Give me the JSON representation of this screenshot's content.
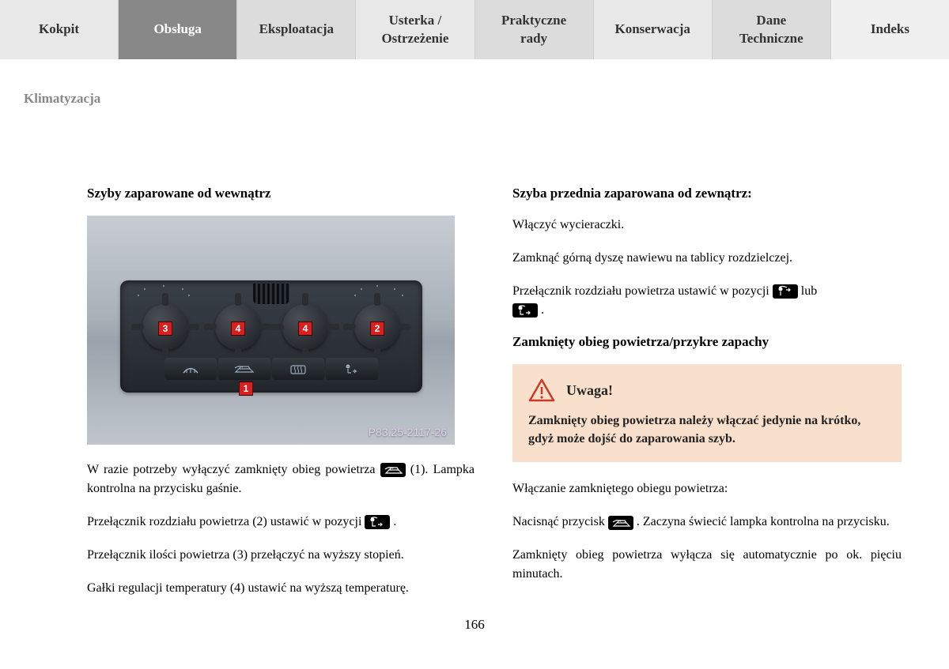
{
  "tabs": [
    {
      "label": "Kokpit",
      "cls": "light"
    },
    {
      "label": "Obsługa",
      "cls": "active"
    },
    {
      "label": "Eksploatacja",
      "cls": "lighter"
    },
    {
      "label": "Usterka / Ostrzeżenie",
      "cls": "light"
    },
    {
      "label": "Praktyczne rady",
      "cls": "lighter"
    },
    {
      "label": "Konserwacja",
      "cls": "light"
    },
    {
      "label": "Dane Techniczne",
      "cls": "lighter"
    },
    {
      "label": "Indeks",
      "cls": "last"
    }
  ],
  "section_label": "Klimatyzacja",
  "left": {
    "heading": "Szyby zaparowane od wewnątrz",
    "image_code": "P83.25-2117-26",
    "markers": {
      "m1": "1",
      "m2": "2",
      "m3": "3",
      "m4a": "4",
      "m4b": "4"
    },
    "p1a": "W razie potrzeby wyłączyć zamknięty obieg powietrza ",
    "p1b": " (1). Lampka kontrolna na przycisku gaśnie.",
    "p2a": "Przełącznik rozdziału powietrza (2) ustawić w pozycji ",
    "p2b": ".",
    "p3": "Przełącznik ilości powietrza (3) przełączyć na wyższy stopień.",
    "p4": "Gałki regulacji temperatury (4) ustawić na wyższą temperaturę."
  },
  "right": {
    "heading1": "Szyba przednia zaparowana od zewnątrz:",
    "p1": "Włączyć wycieraczki.",
    "p2": "Zamknąć górną dyszę nawiewu na tablicy rozdzielczej.",
    "p3a": "Przełącznik rozdziału powietrza ustawić w pozycji ",
    "p3b": " lub ",
    "p3c": ".",
    "heading2": "Zamknięty obieg powietrza/przykre zapachy",
    "warn_title": "Uwaga!",
    "warn_body": "Zamknięty obieg powietrza należy włączać jedynie na krótko, gdyż może dojść do zaparowania szyb.",
    "p4": "Włączanie zamkniętego obiegu powietrza:",
    "p5a": "Nacisnąć przycisk ",
    "p5b": ". Zaczyna świecić lampka kontrolna na przycisku.",
    "p6": "Zamknięty obieg powietrza wyłącza się automatycznie po ok. pięciu minutach."
  },
  "page_number": "166",
  "colors": {
    "tab_active_bg": "#888888",
    "tab_bg": "#e8e8e8",
    "warn_bg": "#f8e0cc",
    "warn_red": "#cc3a26",
    "marker_red": "#d82020"
  }
}
